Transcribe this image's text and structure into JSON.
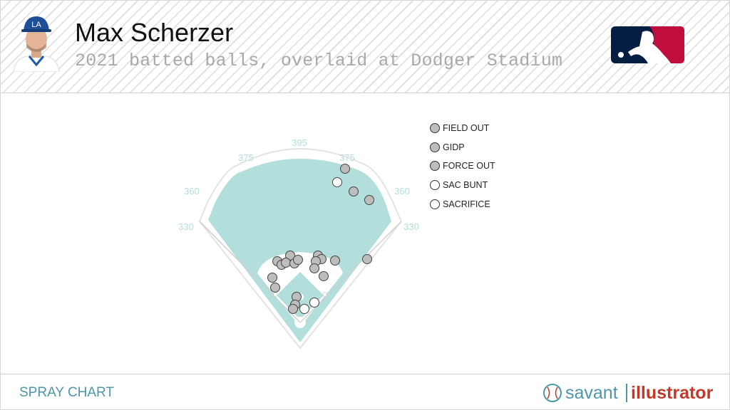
{
  "header": {
    "player_name": "Max Scherzer",
    "subtitle": "2021 batted balls, overlaid at Dodger Stadium"
  },
  "footer": {
    "title": "SPRAY CHART",
    "brand_left": "savant",
    "brand_right": "illustrator"
  },
  "colors": {
    "field_teal": "#b2dfdb",
    "brand_teal": "#4d97a8",
    "brand_red": "#c0392b",
    "out_fill": "#bdbdbd",
    "sac_fill": "#ffffff",
    "mlb_blue": "#041e42",
    "mlb_red": "#bf0d3e"
  },
  "chart_data": {
    "type": "scatter",
    "fence_distances": {
      "left_line": "330",
      "left_field": "360",
      "left_center": "375",
      "center": "395",
      "right_center": "375",
      "right_field": "360",
      "right_line": "330"
    },
    "legend": [
      {
        "label": "FIELD OUT",
        "fill": "#bdbdbd"
      },
      {
        "label": "GIDP",
        "fill": "#bdbdbd"
      },
      {
        "label": "FORCE OUT",
        "fill": "#bdbdbd"
      },
      {
        "label": "SAC BUNT",
        "fill": "#ffffff"
      },
      {
        "label": "SACRIFICE",
        "fill": "#ffffff"
      }
    ],
    "points": [
      {
        "x": 483,
        "y": 236,
        "event": "FIELD OUT"
      },
      {
        "x": 472,
        "y": 255,
        "event": "SACRIFICE"
      },
      {
        "x": 495,
        "y": 268,
        "event": "FIELD OUT"
      },
      {
        "x": 517,
        "y": 280,
        "event": "FIELD OUT"
      },
      {
        "x": 514,
        "y": 363,
        "event": "FIELD OUT"
      },
      {
        "x": 406,
        "y": 358,
        "event": "FIELD OUT"
      },
      {
        "x": 388,
        "y": 366,
        "event": "FIELD OUT"
      },
      {
        "x": 394,
        "y": 371,
        "event": "GIDP"
      },
      {
        "x": 400,
        "y": 368,
        "event": "FIELD OUT"
      },
      {
        "x": 412,
        "y": 369,
        "event": "FORCE OUT"
      },
      {
        "x": 417,
        "y": 364,
        "event": "FIELD OUT"
      },
      {
        "x": 445,
        "y": 358,
        "event": "FIELD OUT"
      },
      {
        "x": 450,
        "y": 363,
        "event": "GIDP"
      },
      {
        "x": 442,
        "y": 366,
        "event": "FIELD OUT"
      },
      {
        "x": 469,
        "y": 365,
        "event": "FIELD OUT"
      },
      {
        "x": 440,
        "y": 376,
        "event": "FIELD OUT"
      },
      {
        "x": 453,
        "y": 387,
        "event": "FIELD OUT"
      },
      {
        "x": 381,
        "y": 389,
        "event": "FIELD OUT"
      },
      {
        "x": 385,
        "y": 403,
        "event": "FIELD OUT"
      },
      {
        "x": 415,
        "y": 416,
        "event": "FIELD OUT"
      },
      {
        "x": 413,
        "y": 427,
        "event": "FIELD OUT"
      },
      {
        "x": 410,
        "y": 433,
        "event": "FIELD OUT"
      },
      {
        "x": 426,
        "y": 433,
        "event": "SAC BUNT"
      },
      {
        "x": 440,
        "y": 424,
        "event": "SAC BUNT"
      }
    ]
  }
}
